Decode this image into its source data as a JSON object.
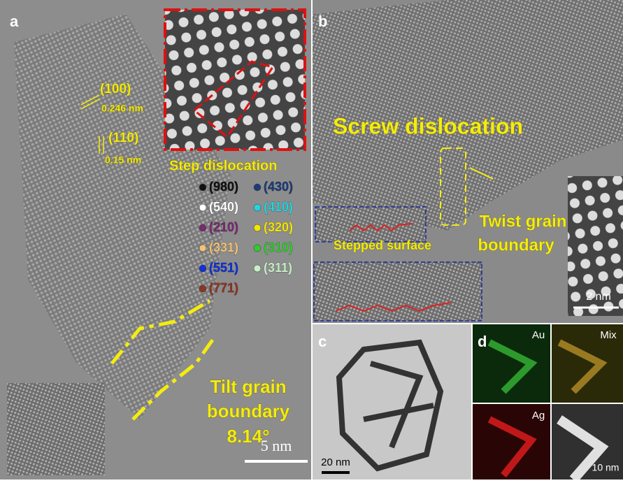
{
  "panels": {
    "a": {
      "label": "a",
      "planes": [
        {
          "plane": "(100)",
          "spacing": "0.246 nm"
        },
        {
          "plane": "(110)",
          "spacing": "0.15 nm"
        }
      ],
      "inset_title": "Step dislocation",
      "legend": [
        {
          "label": "(980)",
          "color": "#111111"
        },
        {
          "label": "(430)",
          "color": "#1c3c78"
        },
        {
          "label": "(540)",
          "color": "#ffffff"
        },
        {
          "label": "(410)",
          "color": "#22d6e0"
        },
        {
          "label": "(210)",
          "color": "#7a2a70"
        },
        {
          "label": "(320)",
          "color": "#f2e600"
        },
        {
          "label": "(331)",
          "color": "#f3c476"
        },
        {
          "label": "(310)",
          "color": "#2ecc2e"
        },
        {
          "label": "(551)",
          "color": "#1030d8"
        },
        {
          "label": "(311)",
          "color": "#c8f0c8"
        },
        {
          "label": "(771)",
          "color": "#8e3424"
        }
      ],
      "tilt_lines": [
        "Tilt grain",
        "boundary",
        "8.14°"
      ],
      "scale_bar": "5 nm"
    },
    "b": {
      "label": "b",
      "screw": "Screw dislocation",
      "twist_lines": [
        "Twist grain",
        "boundary"
      ],
      "stepped": "Stepped surface",
      "scale_bar": "2 nm"
    },
    "c": {
      "label": "c",
      "scale_bar": "20 nm"
    },
    "d": {
      "label": "d",
      "tiles": [
        "Au",
        "Mix",
        "Ag"
      ],
      "scale_bar": "10 nm"
    }
  }
}
